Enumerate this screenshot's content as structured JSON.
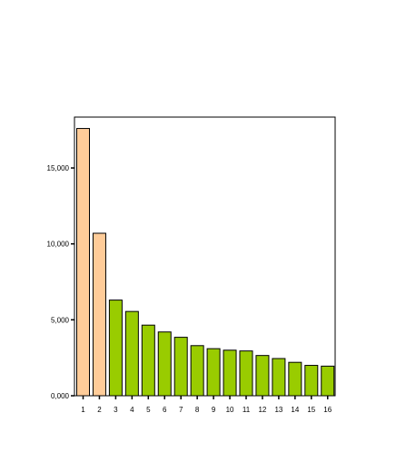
{
  "chart_data": {
    "type": "bar",
    "title": "",
    "xlabel": "",
    "ylabel": "",
    "categories": [
      "1",
      "2",
      "3",
      "4",
      "5",
      "6",
      "7",
      "8",
      "9",
      "10",
      "11",
      "12",
      "13",
      "14",
      "15",
      "16"
    ],
    "values": [
      17.6,
      10.7,
      6.3,
      5.55,
      4.65,
      4.2,
      3.85,
      3.3,
      3.1,
      3.0,
      2.95,
      2.65,
      2.45,
      2.2,
      2.0,
      1.95
    ],
    "bar_colors": [
      "#FFCC99",
      "#FFCC99",
      "#99CC00",
      "#99CC00",
      "#99CC00",
      "#99CC00",
      "#99CC00",
      "#99CC00",
      "#99CC00",
      "#99CC00",
      "#99CC00",
      "#99CC00",
      "#99CC00",
      "#99CC00",
      "#99CC00",
      "#99CC00"
    ],
    "ylim": [
      0,
      18.35
    ],
    "yticks": [
      0,
      5,
      10,
      15
    ],
    "ytick_labels": [
      "0,000",
      "5,000",
      "10,000",
      "15,000"
    ],
    "grid": false,
    "legend": "none"
  }
}
